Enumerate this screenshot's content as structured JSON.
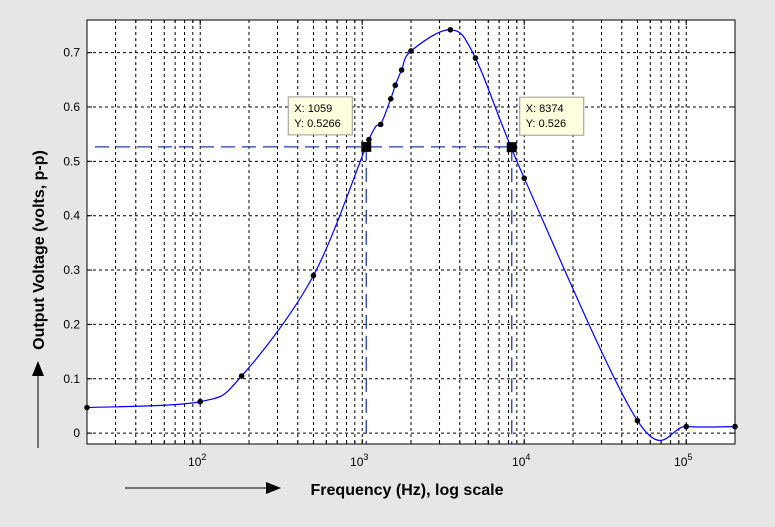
{
  "chart_data": {
    "type": "line",
    "title": "",
    "xlabel": "Frequency (Hz), log scale",
    "ylabel": "Output Voltage (volts, p-p)",
    "x_scale": "log",
    "xlim": [
      20,
      200000
    ],
    "ylim": [
      -0.02,
      0.76
    ],
    "grid": true,
    "x_ticks": [
      {
        "value": 100,
        "base": "10",
        "exp": "2"
      },
      {
        "value": 1000,
        "base": "10",
        "exp": "3"
      },
      {
        "value": 10000,
        "base": "10",
        "exp": "4"
      },
      {
        "value": 100000,
        "base": "10",
        "exp": "5"
      }
    ],
    "y_ticks": [
      0,
      0.1,
      0.2,
      0.3,
      0.4,
      0.5,
      0.6,
      0.7
    ],
    "y_tick_labels": [
      "0",
      "0.1",
      "0.2",
      "0.3",
      "0.4",
      "0.5",
      "0.6",
      "0.7"
    ],
    "series": [
      {
        "color": "#0000ff",
        "marker_color": "#000000",
        "x": [
          20,
          100,
          180,
          500,
          1100,
          1300,
          1500,
          1600,
          1750,
          2000,
          3500,
          5000,
          10000,
          50000,
          100000,
          200000
        ],
        "y": [
          0.047,
          0.058,
          0.105,
          0.29,
          0.54,
          0.568,
          0.615,
          0.64,
          0.668,
          0.703,
          0.742,
          0.69,
          0.469,
          0.023,
          0.012,
          0.012
        ]
      }
    ],
    "datatips": [
      {
        "x": 1059,
        "y": 0.5266,
        "line1": "X: 1059",
        "line2": "Y: 0.5266"
      },
      {
        "x": 8374,
        "y": 0.526,
        "line1": "X: 8374",
        "line2": "Y: 0.526"
      }
    ],
    "reference_line_color": "#1f3fae",
    "datatip_bg": "#ffffe0"
  }
}
